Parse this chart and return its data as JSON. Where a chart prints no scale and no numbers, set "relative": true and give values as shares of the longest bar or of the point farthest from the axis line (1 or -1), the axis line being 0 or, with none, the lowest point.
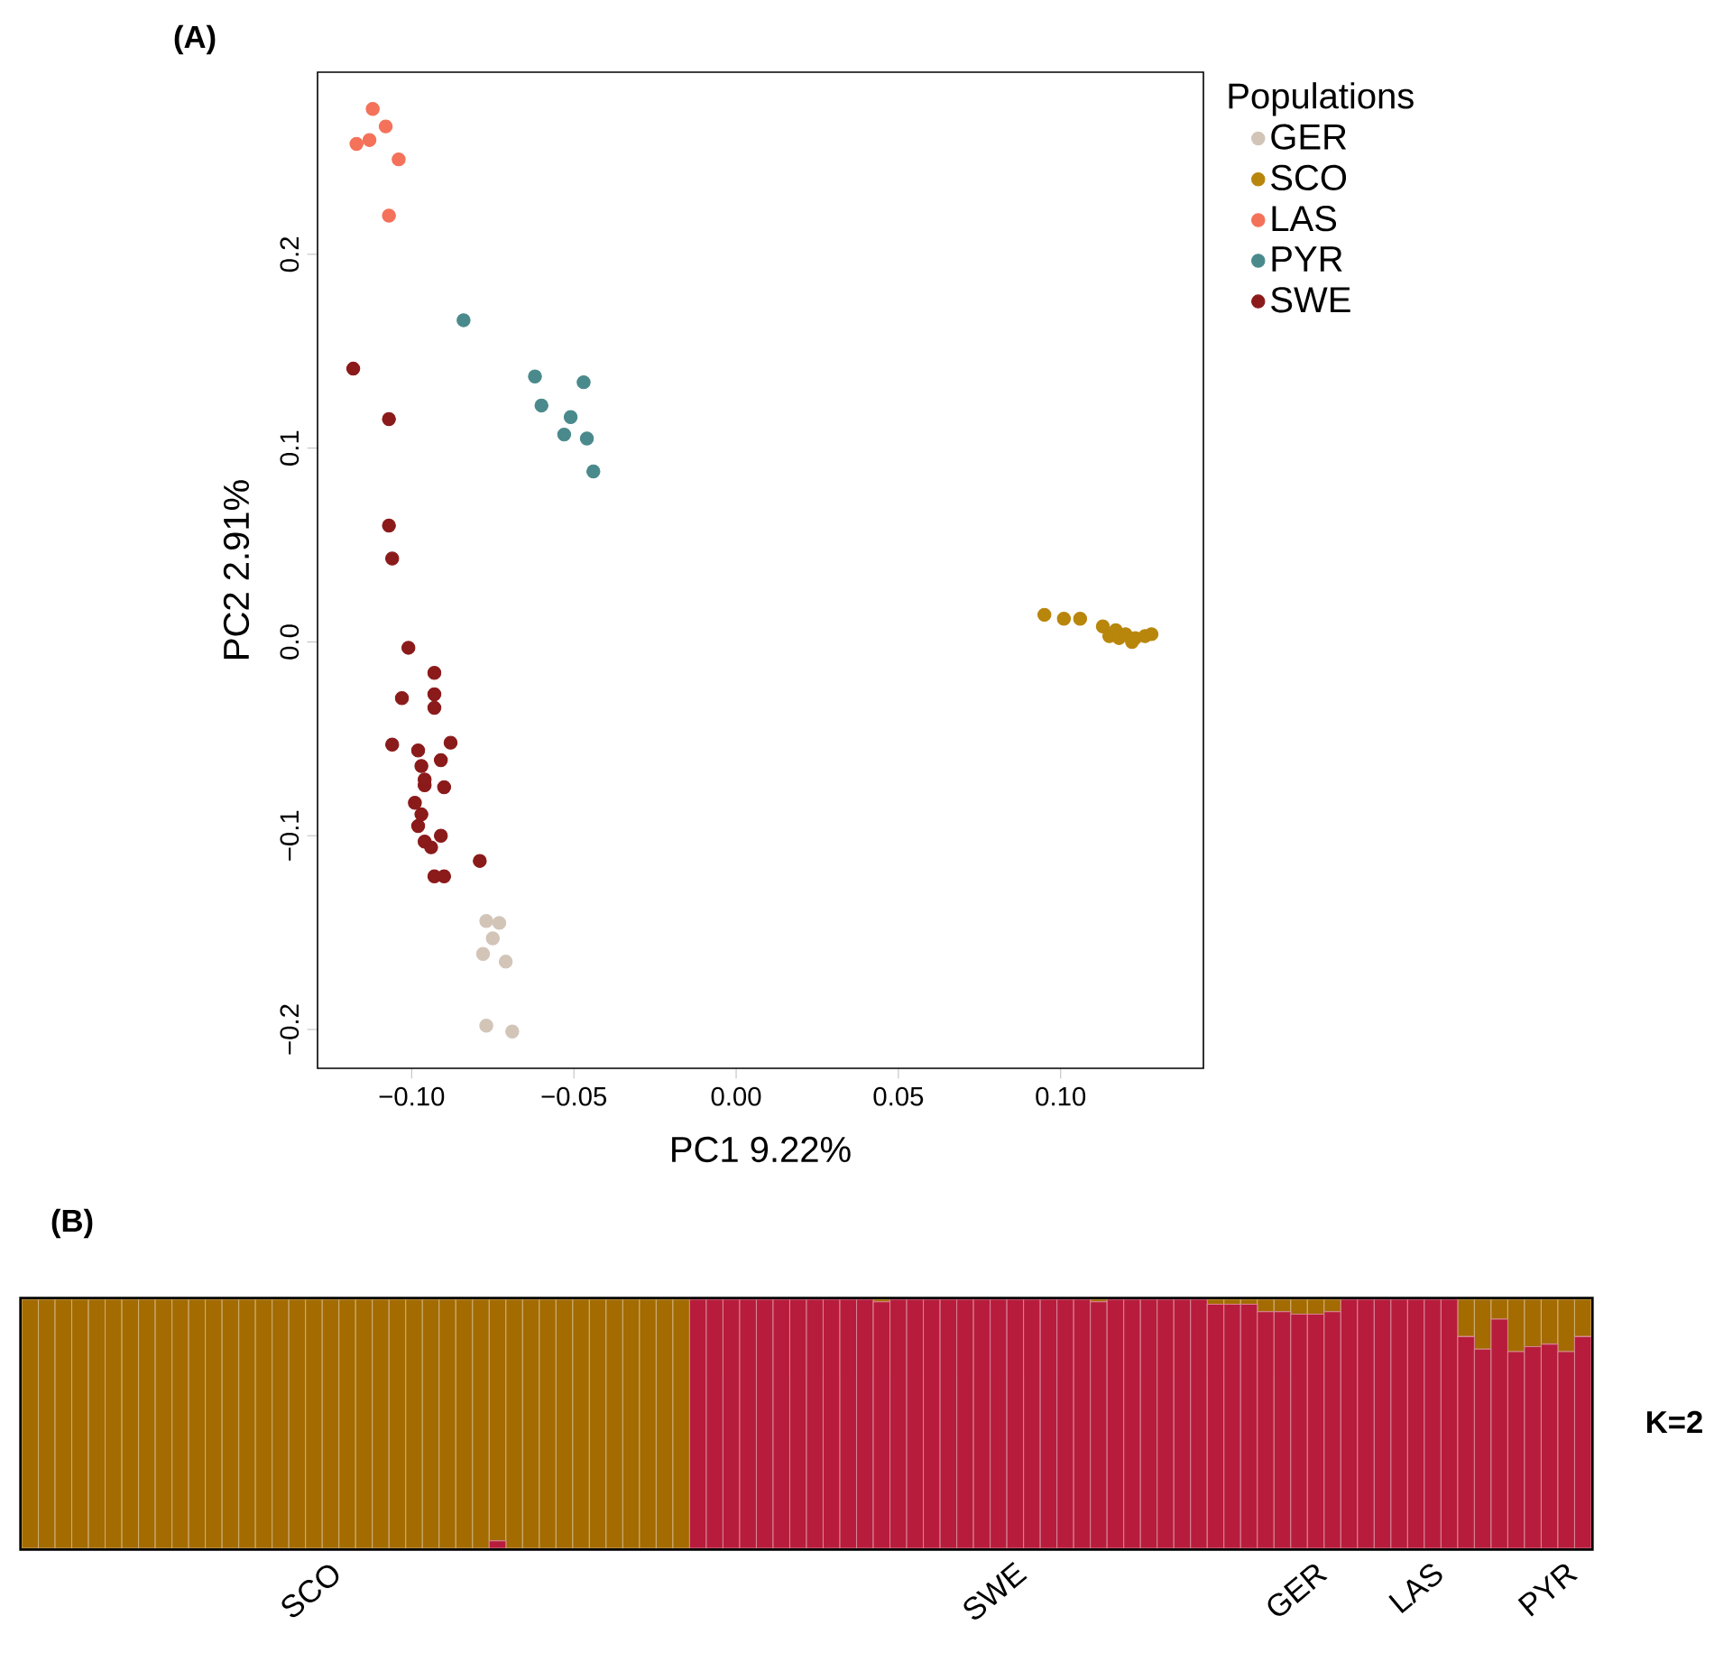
{
  "chart_data": [
    {
      "type": "scatter",
      "title": "(A)",
      "xlabel": "PC1 9.22%",
      "ylabel": "PC2 2.91%",
      "legend_title": "Populations",
      "legend": "top right",
      "marker": "circle",
      "xlim": [
        -0.129,
        0.144
      ],
      "ylim": [
        -0.22,
        0.294
      ],
      "xticks": [
        {
          "value": -0.1,
          "label": "−0.10"
        },
        {
          "value": -0.05,
          "label": "−0.05"
        },
        {
          "value": 0,
          "label": "0.00"
        },
        {
          "value": 0.05,
          "label": "0.05"
        },
        {
          "value": 0.1,
          "label": "0.10"
        }
      ],
      "yticks": [
        {
          "value": -0.2,
          "label": "−0.2"
        },
        {
          "value": -0.1,
          "label": "−0.1"
        },
        {
          "value": 0,
          "label": "0.0"
        },
        {
          "value": 0.1,
          "label": "0.1"
        },
        {
          "value": 0.2,
          "label": "0.2"
        }
      ],
      "series": [
        {
          "name": "GER",
          "color": "#d2c5b8",
          "x": [
            -0.077,
            -0.073,
            -0.075,
            -0.078,
            -0.071,
            -0.077,
            -0.069
          ],
          "values": [
            -0.144,
            -0.145,
            -0.153,
            -0.161,
            -0.165,
            -0.198,
            -0.201
          ]
        },
        {
          "name": "SCO",
          "color": "#b8860b",
          "x": [
            0.095,
            0.101,
            0.106,
            0.113,
            0.115,
            0.117,
            0.118,
            0.12,
            0.122,
            0.123,
            0.125,
            0.126,
            0.128
          ],
          "values": [
            0.014,
            0.012,
            0.012,
            0.008,
            0.003,
            0.006,
            0.002,
            0.004,
            0.0,
            0.002,
            null,
            0.003,
            0.004
          ]
        },
        {
          "name": "LAS",
          "color": "#f4715a",
          "x": [
            -0.112,
            -0.108,
            -0.117,
            -0.113,
            -0.104,
            -0.107
          ],
          "values": [
            0.275,
            0.266,
            0.257,
            0.259,
            0.249,
            0.22
          ]
        },
        {
          "name": "PYR",
          "color": "#4a8a8c",
          "x": [
            -0.084,
            -0.062,
            -0.047,
            -0.06,
            -0.051,
            -0.053,
            -0.046,
            -0.044
          ],
          "values": [
            0.166,
            0.137,
            0.134,
            0.122,
            0.116,
            0.107,
            0.105,
            0.088
          ]
        },
        {
          "name": "SWE",
          "color": "#8b1a1a",
          "x": [
            -0.118,
            -0.107,
            -0.107,
            -0.106,
            -0.101,
            -0.093,
            -0.103,
            -0.093,
            -0.093,
            -0.106,
            -0.098,
            -0.088,
            -0.091,
            -0.096,
            -0.09,
            -0.099,
            -0.098,
            -0.091,
            -0.096,
            -0.079,
            -0.093,
            -0.096,
            -0.097,
            -0.097,
            -0.094,
            -0.09
          ],
          "values": [
            0.141,
            0.115,
            0.06,
            0.043,
            -0.003,
            -0.016,
            -0.029,
            -0.027,
            -0.034,
            -0.053,
            -0.056,
            -0.052,
            -0.061,
            -0.074,
            -0.075,
            -0.083,
            -0.095,
            -0.1,
            -0.103,
            -0.113,
            -0.121,
            -0.071,
            -0.064,
            -0.089,
            -0.106,
            -0.121
          ]
        }
      ]
    },
    {
      "type": "bar",
      "title": "(B)",
      "stacked": true,
      "relative": true,
      "tick_labels": "x",
      "annotations": [
        "K=2"
      ],
      "categories": [
        null,
        null,
        null,
        null,
        null,
        null,
        null,
        null,
        null,
        null,
        null,
        null,
        null,
        null,
        null,
        null,
        null,
        null,
        "SCO",
        null,
        null,
        null,
        null,
        null,
        null,
        null,
        null,
        null,
        null,
        null,
        null,
        null,
        null,
        null,
        null,
        null,
        null,
        null,
        null,
        null,
        null,
        null,
        null,
        null,
        null,
        null,
        null,
        null,
        null,
        null,
        null,
        null,
        null,
        null,
        null,
        null,
        null,
        null,
        null,
        "SWE",
        null,
        null,
        null,
        null,
        null,
        null,
        null,
        null,
        null,
        null,
        null,
        null,
        null,
        null,
        null,
        null,
        null,
        "GER",
        null,
        null,
        null,
        null,
        null,
        null,
        "LAS",
        null,
        null,
        null,
        null,
        null,
        null,
        null,
        "PYR",
        null
      ],
      "series": [
        {
          "color": "#b71c3c",
          "values": [
            0,
            0,
            0,
            0,
            0,
            0,
            0,
            0,
            0,
            0,
            0,
            0,
            0,
            0,
            0,
            0,
            0,
            0,
            0,
            0,
            0,
            0,
            0,
            0,
            0,
            0,
            0,
            0,
            0.03,
            0,
            0,
            0,
            0,
            0,
            0,
            0,
            0,
            0,
            0,
            0,
            1,
            1,
            1,
            1,
            1,
            1,
            1,
            1,
            1,
            1,
            1,
            0.99,
            1,
            1,
            1,
            1,
            1,
            1,
            1,
            1,
            1,
            1,
            1,
            1,
            0.99,
            1,
            1,
            1,
            1,
            1,
            1,
            0.98,
            0.98,
            0.98,
            0.95,
            0.95,
            0.94,
            0.94,
            0.95,
            1,
            1,
            1,
            1,
            1,
            1,
            1,
            0.85,
            0.8,
            0.92,
            0.79,
            0.81,
            0.82,
            0.79,
            0.85
          ]
        },
        {
          "color": "#a36b00",
          "values": [
            1,
            1,
            1,
            1,
            1,
            1,
            1,
            1,
            1,
            1,
            1,
            1,
            1,
            1,
            1,
            1,
            1,
            1,
            1,
            1,
            1,
            1,
            1,
            1,
            1,
            1,
            1,
            1,
            0.97,
            1,
            1,
            1,
            1,
            1,
            1,
            1,
            1,
            1,
            1,
            1,
            0,
            0,
            0,
            0,
            0,
            0,
            0,
            0,
            0,
            0,
            0,
            0.01,
            0,
            0,
            0,
            0,
            0,
            0,
            0,
            0,
            0,
            0,
            0,
            0,
            0.01,
            0,
            0,
            0,
            0,
            0,
            0,
            0.02,
            0.02,
            0.02,
            0.05,
            0.05,
            0.06,
            0.06,
            0.05,
            0,
            0,
            0,
            0,
            0,
            0,
            0,
            0.15,
            0.2,
            0.08,
            0.21,
            0.19,
            0.18,
            0.21,
            0.15
          ]
        }
      ]
    }
  ]
}
